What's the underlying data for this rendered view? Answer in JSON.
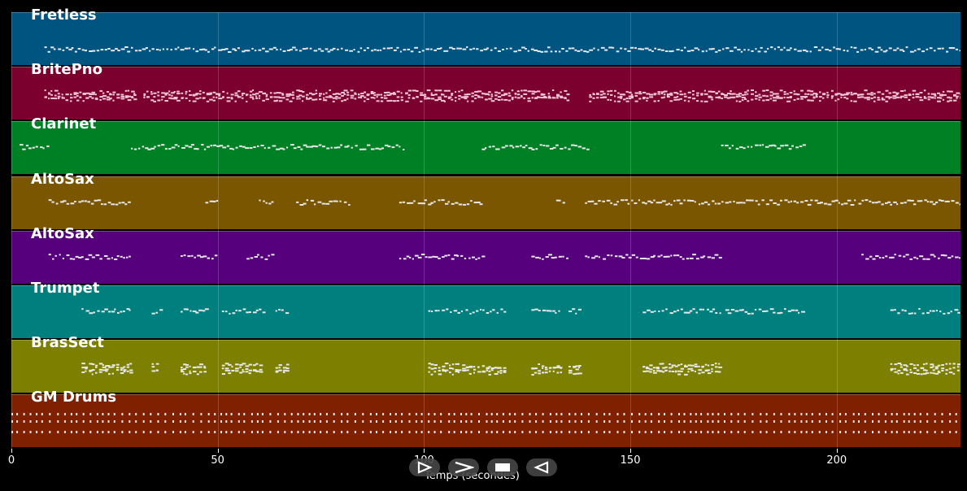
{
  "tracks": [
    {
      "name": "Fretless",
      "color": "#005480"
    },
    {
      "name": "BritePno",
      "color": "#7c002d"
    },
    {
      "name": "Clarinet",
      "color": "#008024"
    },
    {
      "name": "AltoSax",
      "color": "#7b5600"
    },
    {
      "name": "AltoSax",
      "color": "#57007d"
    },
    {
      "name": "Trumpet",
      "color": "#007f7f"
    },
    {
      "name": "BrasSect",
      "color": "#7d7f00"
    },
    {
      "name": "GM Drums",
      "color": "#7f2100"
    }
  ],
  "axis": {
    "min": 0,
    "max": 230,
    "ticks": [
      "0",
      "50",
      "100",
      "150",
      "200"
    ],
    "label": "Temps (secondes)"
  },
  "controls": [
    {
      "icon": "play-outline-icon"
    },
    {
      "icon": "fast-forward-icon"
    },
    {
      "icon": "stop-icon"
    },
    {
      "icon": "rewind-icon"
    }
  ]
}
